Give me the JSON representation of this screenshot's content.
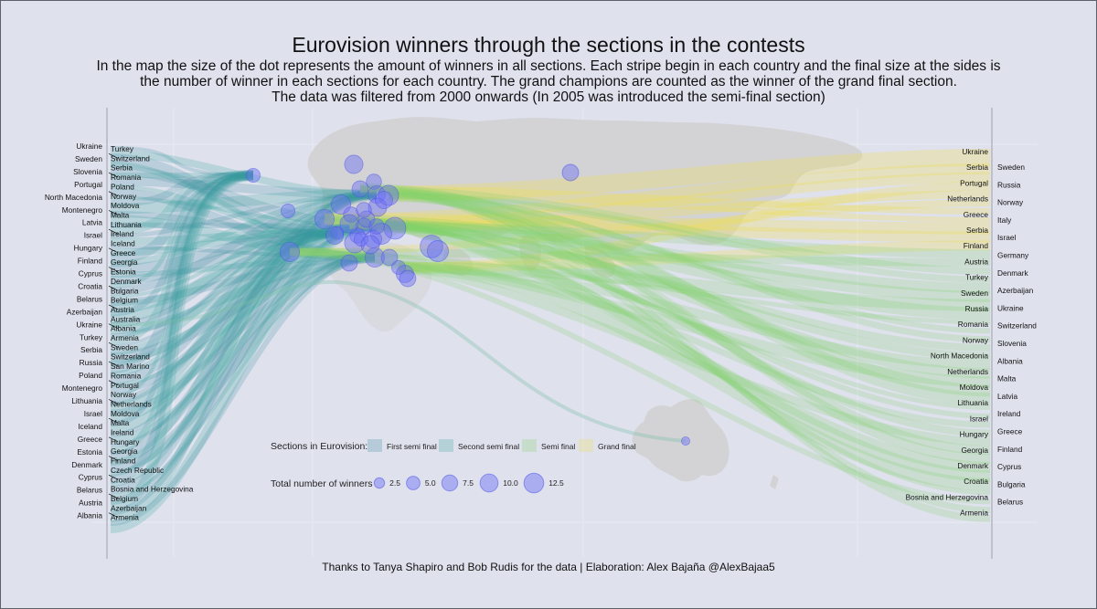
{
  "page": {
    "title": "Eurovision winners through the sections in the contests",
    "subtitle": [
      "In the map the size of the dot represents the amount of winners in all sections. Each stripe begin in each country and the final size at the sides is",
      "the number of winner in each sections for each country. The grand champions are counted as the winner of the grand final section.",
      "The data was filtered from 2000 onwards (In 2005 was introduced the semi-final section)"
    ],
    "caption": "Thanks to  Tanya Shapiro and Bob Rudis for the data | Elaboration: Alex Bajaña @AlexBajaa5"
  },
  "chart_data": {
    "type": "sankey-map",
    "map_region": "Europe and Australia",
    "left_column": {
      "outer_labels": [
        "Ukraine",
        "Sweden",
        "Slovenia",
        "Portugal",
        "North Macedonia",
        "Montenegro",
        "Latvia",
        "Israel",
        "Hungary",
        "Finland",
        "Cyprus",
        "Croatia",
        "Belarus",
        "Azerbaijan",
        "Ukraine",
        "Turkey",
        "Serbia",
        "Russia",
        "Poland",
        "Montenegro",
        "Lithuania",
        "Israel",
        "Iceland",
        "Greece",
        "Estonia",
        "Denmark",
        "Cyprus",
        "Belarus",
        "Austria",
        "Albania"
      ],
      "inner_labels": [
        "Turkey",
        "Switzerland",
        "Serbia",
        "Romania",
        "Poland",
        "Norway",
        "Moldova",
        "Malta",
        "Lithuania",
        "Ireland",
        "Iceland",
        "Greece",
        "Georgia",
        "Estonia",
        "Denmark",
        "Bulgaria",
        "Belgium",
        "Austria",
        "Australia",
        "Albania",
        "Armenia",
        "Sweden",
        "Switzerland",
        "San Marino",
        "Romania",
        "Portugal",
        "Norway",
        "Netherlands",
        "Moldova",
        "Malta",
        "Ireland",
        "Hungary",
        "Georgia",
        "Finland",
        "Czech Republic",
        "Croatia",
        "Bosnia and Herzegovina",
        "Belgium",
        "Azerbaijan",
        "Armenia"
      ]
    },
    "right_column": {
      "outer_labels": [
        "Ukraine",
        "Serbia",
        "Portugal",
        "Netherlands",
        "Greece",
        "Serbia",
        "Finland",
        "Austria",
        "Turkey",
        "Sweden",
        "Russia",
        "Romania",
        "Norway",
        "North Macedonia",
        "Netherlands",
        "Moldova",
        "Lithuania",
        "Israel",
        "Hungary",
        "Georgia",
        "Denmark",
        "Croatia",
        "Bosnia and Herzegovina",
        "Armenia"
      ],
      "inner_labels": [
        "Sweden",
        "Russia",
        "Norway",
        "Italy",
        "Israel",
        "Germany",
        "Denmark",
        "Azerbaijan",
        "Ukraine",
        "Switzerland",
        "Slovenia",
        "Albania",
        "Malta",
        "Latvia",
        "Ireland",
        "Greece",
        "Finland",
        "Cyprus",
        "Bulgaria",
        "Belarus"
      ]
    },
    "series": [
      {
        "name": "First semi final",
        "color": "#3c8d9e",
        "side": "left"
      },
      {
        "name": "Second semi final",
        "color": "#34a39a",
        "side": "left"
      },
      {
        "name": "Semi final",
        "color": "#7ed36b",
        "side": "right"
      },
      {
        "name": "Grand final",
        "color": "#f1e04a",
        "side": "right"
      }
    ],
    "points": [
      {
        "n": 4
      },
      {
        "n": 8
      },
      {
        "n": 5
      },
      {
        "n": 6
      },
      {
        "n": 4
      },
      {
        "n": 9
      },
      {
        "n": 5
      },
      {
        "n": 7
      },
      {
        "n": 10
      },
      {
        "n": 8
      },
      {
        "n": 7
      },
      {
        "n": 12
      },
      {
        "n": 6
      },
      {
        "n": 9
      },
      {
        "n": 3
      },
      {
        "n": 11
      },
      {
        "n": 7
      },
      {
        "n": 5
      },
      {
        "n": 8
      },
      {
        "n": 6
      },
      {
        "n": 10
      },
      {
        "n": 9
      },
      {
        "n": 6
      },
      {
        "n": 4
      },
      {
        "n": 13
      },
      {
        "n": 11
      },
      {
        "n": 7
      },
      {
        "n": 6
      },
      {
        "n": 5
      },
      {
        "n": 4
      },
      {
        "n": 8
      },
      {
        "n": 7
      },
      {
        "n": 6
      },
      {
        "n": 9
      },
      {
        "n": 5
      },
      {
        "n": 1
      }
    ],
    "legend": {
      "sections_title": "Sections in Eurovision:",
      "sections": [
        "First semi final",
        "Second semi final",
        "Semi final",
        "Grand final"
      ],
      "size_title": "Total number of winners",
      "size_values": [
        2.5,
        5.0,
        7.5,
        10.0,
        12.5
      ],
      "size_labels": [
        "2.5",
        "5.0",
        "7.5",
        "10.0",
        "12.5"
      ]
    },
    "colors": {
      "background": "#dfe1ed",
      "land": "#d2d2d4",
      "dots": "#5a5ef0"
    }
  }
}
